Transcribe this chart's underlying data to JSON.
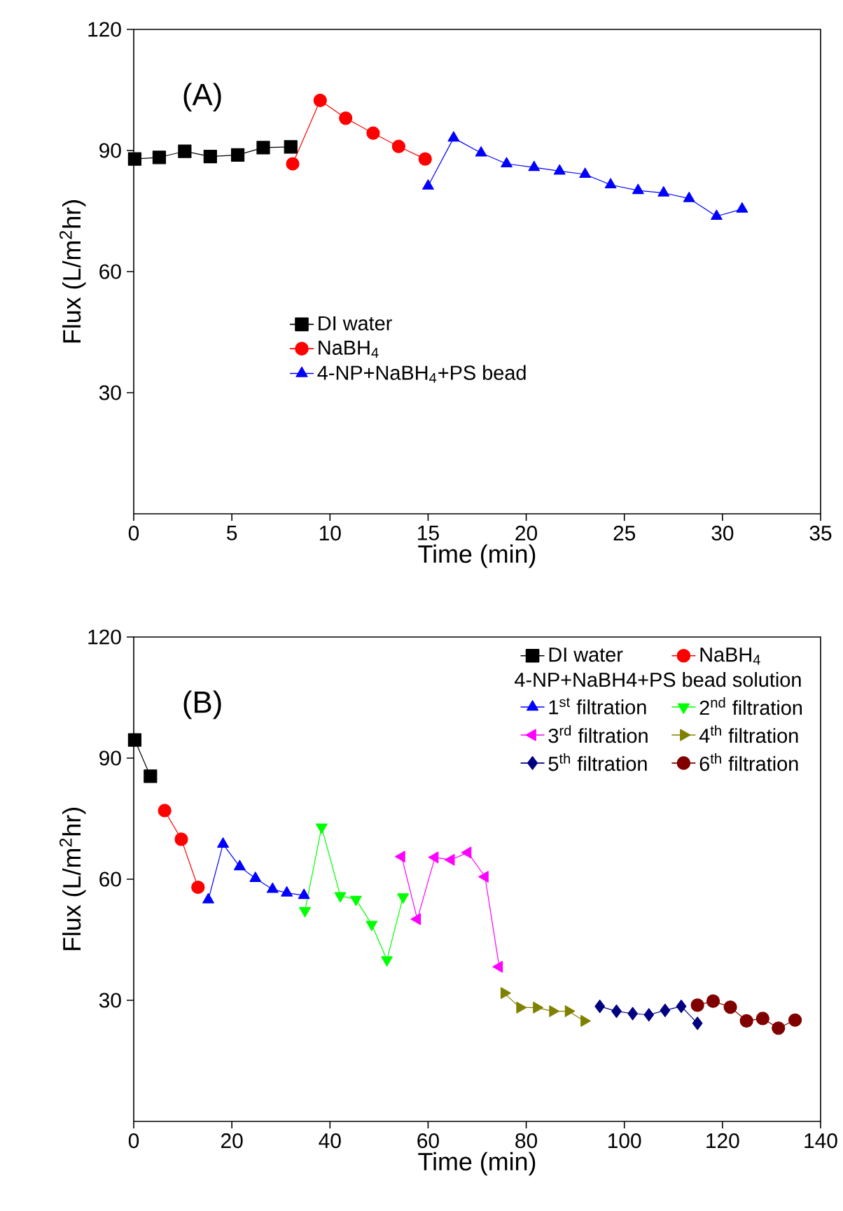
{
  "chart_data": [
    {
      "type": "line",
      "xlabel": "Time (min)",
      "ylabel": "Flux (L/m$^{2}$hr)",
      "annotations": [
        "(A)"
      ],
      "xlim": [
        0,
        35
      ],
      "ylim": [
        0,
        120
      ],
      "xticks": [
        0,
        5,
        10,
        15,
        20,
        25,
        30,
        35
      ],
      "yticks": [
        30,
        60,
        90,
        120
      ],
      "legend": "left",
      "series": [
        {
          "name": "DI water",
          "color": "#000000",
          "marker": "square",
          "x": [
            0.05,
            1.3,
            2.6,
            3.9,
            5.3,
            6.6,
            8.0
          ],
          "values": [
            87.9,
            88.3,
            89.8,
            88.5,
            88.9,
            90.7,
            90.9
          ]
        },
        {
          "name": "NaBH$_{4}$",
          "color": "#ff0000",
          "marker": "circle",
          "x": [
            8.1,
            9.5,
            10.8,
            12.2,
            13.5,
            14.85
          ],
          "values": [
            86.7,
            102.4,
            98.0,
            94.3,
            91.0,
            87.9
          ]
        },
        {
          "name": "4-NP+NaBH$_{4}$+PS bead",
          "color": "#0000ff",
          "marker": "triangle",
          "x": [
            15.0,
            16.3,
            17.7,
            19.0,
            20.4,
            21.7,
            23.0,
            24.3,
            25.7,
            27.0,
            28.3,
            29.7,
            31.0
          ],
          "values": [
            81.2,
            93.1,
            89.4,
            86.7,
            85.8,
            84.9,
            84.1,
            81.5,
            80.1,
            79.5,
            78.1,
            73.7,
            75.5
          ]
        }
      ]
    },
    {
      "type": "line",
      "xlabel": "Time (min)",
      "ylabel": "Flux (L/m$^{2}$hr)",
      "annotations": [
        "(B)"
      ],
      "xlim": [
        0,
        140
      ],
      "ylim": [
        0,
        120
      ],
      "xticks": [
        0,
        20,
        40,
        60,
        80,
        100,
        120,
        140
      ],
      "yticks": [
        30,
        60,
        90,
        120
      ],
      "legend": "top right",
      "legend_title": "4-NP+NaBH4+PS bead solution",
      "series": [
        {
          "name": "DI water",
          "color": "#000000",
          "marker": "square",
          "x": [
            0.2,
            3.4
          ],
          "values": [
            94.5,
            85.5
          ]
        },
        {
          "name": "NaBH$_{4}$",
          "color": "#ff0000",
          "marker": "circle",
          "x": [
            6.3,
            9.7,
            13.1
          ],
          "values": [
            77.0,
            69.9,
            58.0
          ]
        },
        {
          "name": "1$^{st}$ filtration",
          "color": "#0000ff",
          "marker": "triangle",
          "x": [
            15.2,
            18.2,
            21.6,
            24.8,
            28.3,
            31.2,
            34.7
          ],
          "values": [
            54.9,
            68.7,
            63.1,
            60.2,
            57.5,
            56.6,
            56.0
          ]
        },
        {
          "name": "2$^{nd}$ filtration",
          "color": "#00ff00",
          "marker": "triangle-down",
          "x": [
            34.9,
            38.3,
            42.1,
            45.3,
            48.5,
            51.6,
            54.9
          ],
          "values": [
            52.2,
            72.9,
            55.9,
            55.0,
            48.8,
            40.0,
            55.6
          ]
        },
        {
          "name": "3$^{rd}$ filtration",
          "color": "#ff00ff",
          "marker": "triangle-left",
          "x": [
            54.6,
            57.8,
            61.4,
            64.7,
            68.1,
            71.6,
            74.5
          ],
          "values": [
            65.6,
            50.1,
            65.4,
            64.8,
            66.6,
            60.6,
            38.3
          ]
        },
        {
          "name": "4$^{th}$ filtration",
          "color": "#808000",
          "marker": "triangle-right",
          "x": [
            75.5,
            78.7,
            82.1,
            85.4,
            88.6,
            91.8
          ],
          "values": [
            31.8,
            28.2,
            28.2,
            27.3,
            27.3,
            24.9
          ]
        },
        {
          "name": "5$^{th}$ filtration",
          "color": "#000080",
          "marker": "diamond",
          "x": [
            95.0,
            98.4,
            101.7,
            105.0,
            108.3,
            111.6,
            114.9
          ],
          "values": [
            28.5,
            27.3,
            26.7,
            26.4,
            27.5,
            28.5,
            24.3
          ]
        },
        {
          "name": "6$^{th}$ filtration",
          "color": "#800000",
          "marker": "circle",
          "x": [
            114.9,
            118.1,
            121.6,
            124.9,
            128.2,
            131.4,
            134.8
          ],
          "values": [
            28.8,
            29.8,
            28.3,
            24.9,
            25.5,
            23.1,
            25.1
          ]
        }
      ]
    }
  ]
}
